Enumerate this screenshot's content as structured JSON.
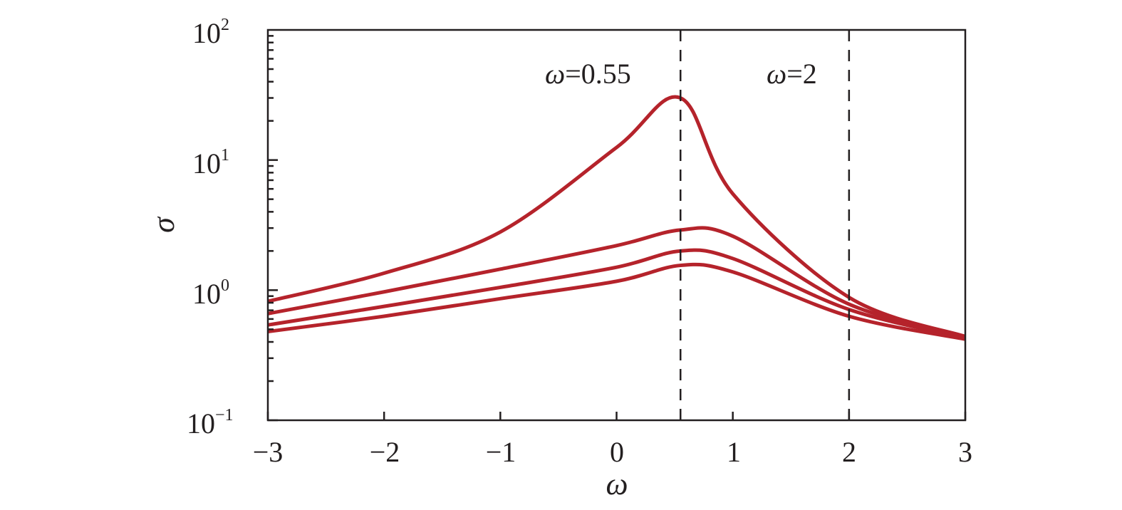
{
  "chart_data": {
    "type": "line",
    "title": "",
    "xlabel": "ω",
    "ylabel": "σ",
    "xlim": [
      -3,
      3
    ],
    "ylim": [
      0.1,
      100
    ],
    "yscale": "log",
    "grid": false,
    "legend": null,
    "x_ticks": [
      "−3",
      "−2",
      "−1",
      "0",
      "1",
      "2",
      "3"
    ],
    "y_ticks": [
      {
        "base": "10",
        "exp": "2"
      },
      {
        "base": "10",
        "exp": "1"
      },
      {
        "base": "10",
        "exp": "0"
      },
      {
        "base": "10",
        "exp": "−1"
      }
    ],
    "line_color": "#b5232b",
    "annotations": [
      {
        "label_symbol": "ω",
        "label_value": "=0.55",
        "x": 0.55,
        "style": "dashed-vertical"
      },
      {
        "label_symbol": "ω",
        "label_value": "=2",
        "x": 2,
        "style": "dashed-vertical"
      }
    ],
    "x": [
      -3,
      -2,
      -1,
      0,
      0.55,
      1,
      2,
      3
    ],
    "series": [
      {
        "name": "curve-1",
        "values": [
          0.82,
          1.35,
          2.8,
          12.5,
          30.0,
          5.5,
          0.88,
          0.44
        ]
      },
      {
        "name": "curve-2",
        "values": [
          0.66,
          0.97,
          1.45,
          2.2,
          2.9,
          2.6,
          0.78,
          0.44
        ]
      },
      {
        "name": "curve-3",
        "values": [
          0.54,
          0.75,
          1.05,
          1.5,
          2.0,
          1.75,
          0.71,
          0.43
        ]
      },
      {
        "name": "curve-4",
        "values": [
          0.48,
          0.63,
          0.86,
          1.17,
          1.55,
          1.38,
          0.63,
          0.42
        ]
      }
    ]
  }
}
